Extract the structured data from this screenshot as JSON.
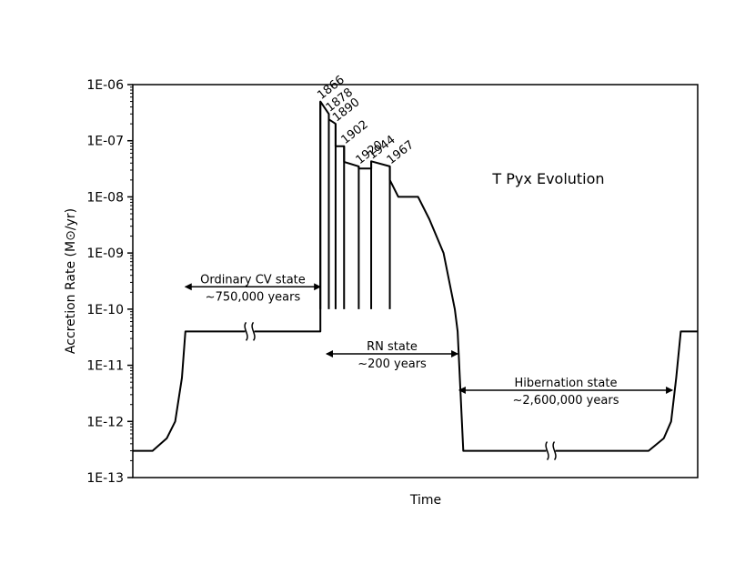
{
  "chart_data": {
    "type": "line",
    "title": "T Pyx Evolution",
    "xlabel": "Time",
    "ylabel": "Accretion Rate (M⊙/yr)",
    "yscale": "log",
    "ylim": [
      1e-13,
      1e-06
    ],
    "y_ticks": [
      "1E-13",
      "1E-12",
      "1E-11",
      "1E-10",
      "1E-09",
      "1E-08",
      "1E-07",
      "1E-06"
    ],
    "x_tick_labels": "none",
    "grid": false,
    "series": [
      {
        "values": [
          [
            0,
            3e-13
          ],
          [
            0.035,
            3e-13
          ],
          [
            0.06,
            5e-13
          ],
          [
            0.075,
            1e-12
          ],
          [
            0.087,
            6e-12
          ],
          [
            0.093,
            4e-11
          ],
          [
            0.165,
            4e-11
          ],
          [
            0.185,
            4e-11
          ],
          [
            0.265,
            4e-11
          ],
          [
            0.332,
            4e-11
          ],
          [
            0.332,
            5e-07
          ],
          [
            0.347,
            3e-07
          ],
          [
            0.347,
            2.4e-07
          ],
          [
            0.359,
            2e-07
          ],
          [
            0.359,
            8e-08
          ],
          [
            0.374,
            8e-08
          ],
          [
            0.374,
            4.2e-08
          ],
          [
            0.4,
            3.5e-08
          ],
          [
            0.4,
            3.2e-08
          ],
          [
            0.422,
            3.2e-08
          ],
          [
            0.422,
            4.3e-08
          ],
          [
            0.455,
            3.5e-08
          ],
          [
            0.455,
            2e-08
          ],
          [
            0.47,
            1e-08
          ],
          [
            0.505,
            1e-08
          ],
          [
            0.525,
            4e-09
          ],
          [
            0.55,
            1e-09
          ],
          [
            0.57,
            1e-10
          ],
          [
            0.575,
            4e-11
          ],
          [
            0.585,
            3e-13
          ],
          [
            0.73,
            3e-13
          ],
          [
            0.913,
            3e-13
          ],
          [
            0.94,
            5e-13
          ],
          [
            0.953,
            1e-12
          ],
          [
            0.962,
            6e-12
          ],
          [
            0.97,
            4e-11
          ],
          [
            1.0,
            4e-11
          ]
        ]
      }
    ],
    "eruption_spikes": [
      {
        "label": "1866",
        "x": 0.332,
        "peak": 5e-07,
        "base": 1e-10
      },
      {
        "label": "1878",
        "x": 0.347,
        "peak": 3e-07,
        "base": 1e-10
      },
      {
        "label": "1890",
        "x": 0.359,
        "peak": 2e-07,
        "base": 1e-10
      },
      {
        "label": "1902",
        "x": 0.374,
        "peak": 8e-08,
        "base": 1e-10
      },
      {
        "label": "1920",
        "x": 0.4,
        "peak": 3.5e-08,
        "base": 1e-10
      },
      {
        "label": "1944",
        "x": 0.422,
        "peak": 4.3e-08,
        "base": 1e-10
      },
      {
        "label": "1967",
        "x": 0.455,
        "peak": 3.5e-08,
        "base": 1e-10
      }
    ],
    "axis_breaks": [
      {
        "x": 0.207,
        "y": 4e-11
      },
      {
        "x": 0.74,
        "y": 3e-13
      }
    ],
    "annotations": [
      {
        "line1": "Ordinary CV state",
        "line2": "~750,000 years",
        "x_from": 0.093,
        "x_to": 0.332,
        "y": 2.5e-10
      },
      {
        "line1": "RN state",
        "line2": "~200 years",
        "x_from": 0.343,
        "x_to": 0.575,
        "y": 1.6e-11
      },
      {
        "line1": "Hibernation state",
        "line2": "~2,600,000 years",
        "x_from": 0.578,
        "x_to": 0.955,
        "y": 3.6e-12
      }
    ]
  }
}
